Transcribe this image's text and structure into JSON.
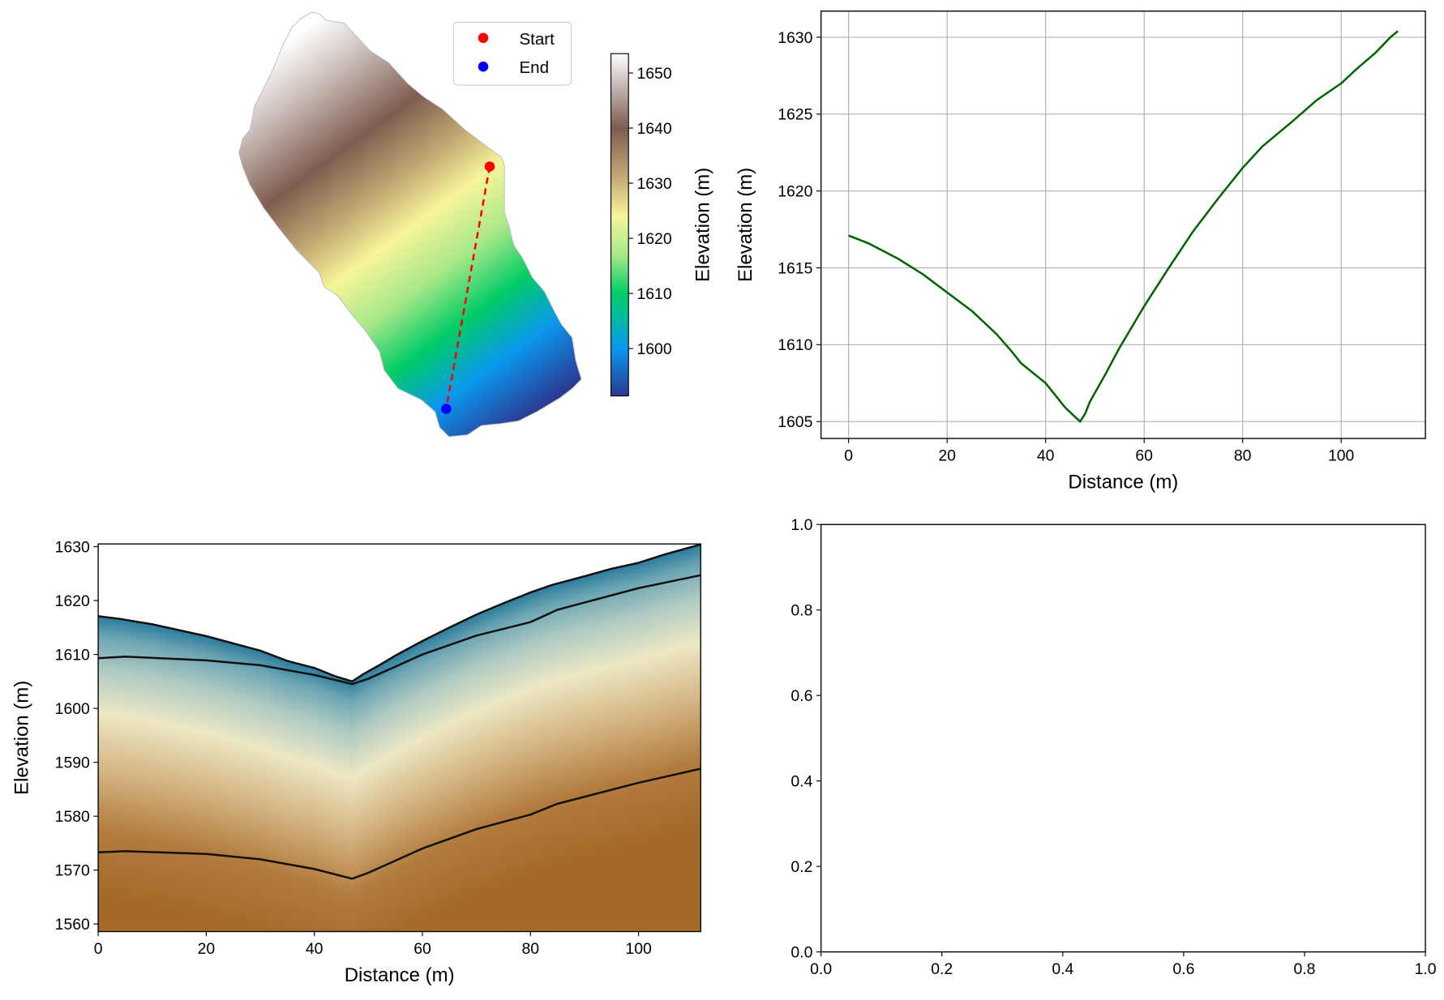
{
  "chart_data": [
    {
      "type": "heatmap",
      "panel": "map",
      "colorbar": {
        "label": "Elevation (m)",
        "ticks": [
          1600,
          1610,
          1620,
          1630,
          1640,
          1650
        ],
        "range": [
          1591.4,
          1653.5
        ],
        "colors": [
          [
            1591.4,
            "#2b3990"
          ],
          [
            1600,
            "#0a97ee"
          ],
          [
            1605,
            "#00b8a8"
          ],
          [
            1610,
            "#00cc66"
          ],
          [
            1617,
            "#a8e888"
          ],
          [
            1624,
            "#f7f59a"
          ],
          [
            1631,
            "#c4ab74"
          ],
          [
            1640,
            "#7f5c50"
          ],
          [
            1648,
            "#c8bcb8"
          ],
          [
            1653.5,
            "#ffffff"
          ]
        ]
      },
      "legend": [
        {
          "label": "Start",
          "color": "#ff0000"
        },
        {
          "label": "End",
          "color": "#0000ff"
        }
      ],
      "profile_line_color": "#ff0000"
    },
    {
      "type": "line",
      "panel": "profile",
      "xlabel": "Distance (m)",
      "ylabel": "Elevation (m)",
      "xlim": [
        -5.6,
        117.1
      ],
      "ylim": [
        1603.9,
        1631.7
      ],
      "xticks": [
        0,
        20,
        40,
        60,
        80,
        100
      ],
      "yticks": [
        1605,
        1610,
        1615,
        1620,
        1625,
        1630
      ],
      "grid": true,
      "color": "#006400",
      "x": [
        0,
        4,
        7,
        10,
        15,
        20,
        25,
        30,
        33,
        35,
        40,
        44,
        46,
        47,
        48,
        49,
        52,
        55,
        60,
        65,
        70,
        75,
        80,
        84,
        90,
        95,
        100,
        103,
        107,
        110,
        111.5
      ],
      "y": [
        1617.1,
        1616.6,
        1616.1,
        1615.6,
        1614.6,
        1613.4,
        1612.2,
        1610.7,
        1609.6,
        1608.8,
        1607.5,
        1605.9,
        1605.3,
        1605.0,
        1605.5,
        1606.3,
        1608.0,
        1609.8,
        1612.5,
        1615.0,
        1617.4,
        1619.5,
        1621.5,
        1622.9,
        1624.5,
        1625.9,
        1627.0,
        1627.9,
        1629.0,
        1630.0,
        1630.4
      ]
    },
    {
      "type": "area",
      "panel": "cross-section",
      "xlabel": "Distance (m)",
      "ylabel": "Elevation (m)",
      "xlim": [
        0,
        111.5
      ],
      "ylim": [
        1558.6,
        1630.5
      ],
      "xticks": [
        0,
        20,
        40,
        60,
        80,
        100
      ],
      "yticks": [
        1560,
        1570,
        1580,
        1590,
        1600,
        1610,
        1620,
        1630
      ],
      "layers": [
        {
          "x": [
            0,
            4,
            10,
            20,
            30,
            35,
            40,
            44,
            47,
            49,
            52,
            55,
            60,
            65,
            70,
            75,
            80,
            84,
            90,
            95,
            100,
            105,
            111.5
          ],
          "y": [
            1617.1,
            1616.6,
            1615.6,
            1613.4,
            1610.7,
            1608.8,
            1607.5,
            1605.9,
            1605.0,
            1606.3,
            1608.0,
            1609.8,
            1612.5,
            1615.0,
            1617.4,
            1619.5,
            1621.5,
            1622.9,
            1624.5,
            1625.9,
            1627.0,
            1628.6,
            1630.4
          ]
        },
        {
          "x": [
            0,
            5,
            20,
            30,
            40,
            47,
            50,
            60,
            70,
            80,
            85,
            100,
            111.5
          ],
          "y": [
            1609.3,
            1609.6,
            1608.9,
            1608.0,
            1606.2,
            1604.5,
            1605.5,
            1610.0,
            1613.5,
            1616.0,
            1618.3,
            1622.3,
            1624.7
          ]
        },
        {
          "x": [
            0,
            5,
            20,
            30,
            40,
            47,
            50,
            60,
            70,
            80,
            85,
            100,
            111.5
          ],
          "y": [
            1573.3,
            1573.5,
            1573.0,
            1572.0,
            1570.2,
            1568.4,
            1569.5,
            1574.0,
            1577.6,
            1580.3,
            1582.3,
            1586.2,
            1588.8
          ]
        }
      ],
      "depth_colors": [
        [
          0,
          "#2a7b9c"
        ],
        [
          4,
          "#6fa7b4"
        ],
        [
          10,
          "#b0cbc2"
        ],
        [
          18,
          "#ece8c4"
        ],
        [
          28,
          "#d6b887"
        ],
        [
          40,
          "#b27c3e"
        ],
        [
          52,
          "#a56a2a"
        ],
        [
          200,
          "#a56a2a"
        ]
      ]
    },
    {
      "type": "line",
      "panel": "empty",
      "xlim": [
        0,
        1
      ],
      "ylim": [
        0,
        1
      ],
      "xticks": [
        0.0,
        0.2,
        0.4,
        0.6,
        0.8,
        1.0
      ],
      "yticks": [
        0.0,
        0.2,
        0.4,
        0.6,
        0.8,
        1.0
      ],
      "xtick_labels": [
        "0.0",
        "0.2",
        "0.4",
        "0.6",
        "0.8",
        "1.0"
      ],
      "ytick_labels": [
        "0.0",
        "0.2",
        "0.4",
        "0.6",
        "0.8",
        "1.0"
      ]
    }
  ]
}
